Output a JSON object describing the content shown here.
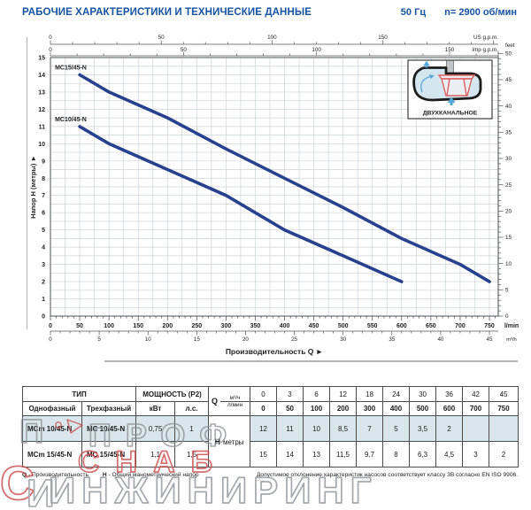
{
  "header": {
    "title": "РАБОЧИЕ ХАРАКТЕРИСТИКИ И ТЕХНИЧЕСКИЕ ДАННЫЕ",
    "frequency": "50 Гц",
    "speed": "n= 2900 об/мин"
  },
  "chart_data": {
    "type": "line",
    "xlabel": "Производительность Q  ►",
    "ylabel": "Напор H (метры)  ►",
    "x_axes": {
      "lmin": {
        "unit": "l/min",
        "ticks": [
          0,
          50,
          100,
          150,
          200,
          250,
          300,
          350,
          400,
          450,
          500,
          550,
          600,
          650,
          700,
          750
        ]
      },
      "m3h": {
        "unit": "m³/h",
        "ticks": [
          0,
          5,
          10,
          15,
          20,
          25,
          30,
          35,
          40,
          45
        ]
      },
      "us_gpm": {
        "unit": "US g.p.m.",
        "ticks": [
          0,
          50,
          100,
          150
        ]
      },
      "imp_gpm": {
        "unit": "Imp g.p.m.",
        "ticks": [
          0,
          50,
          100,
          150
        ]
      }
    },
    "y_axes": {
      "meters": {
        "ticks": [
          0,
          1,
          2,
          3,
          4,
          5,
          6,
          7,
          8,
          9,
          10,
          11,
          12,
          13,
          14,
          15
        ]
      },
      "feet": {
        "unit": "feet",
        "ticks": [
          0,
          5,
          10,
          15,
          20,
          25,
          30,
          35,
          40,
          45,
          50
        ]
      }
    },
    "series": [
      {
        "name": "MC15/45-N",
        "color": "#28418e",
        "points": [
          [
            50,
            14
          ],
          [
            100,
            13
          ],
          [
            200,
            11.5
          ],
          [
            300,
            9.7
          ],
          [
            400,
            8
          ],
          [
            500,
            6.3
          ],
          [
            600,
            4.5
          ],
          [
            700,
            3
          ],
          [
            750,
            2
          ]
        ]
      },
      {
        "name": "MC10/45-N",
        "color": "#28418e",
        "points": [
          [
            50,
            11
          ],
          [
            100,
            10
          ],
          [
            200,
            8.5
          ],
          [
            300,
            7
          ],
          [
            400,
            5
          ],
          [
            500,
            3.5
          ],
          [
            600,
            2
          ]
        ]
      }
    ],
    "inset_label": "ДВУХКАНАЛЬНОЕ"
  },
  "table": {
    "headers": {
      "tip": "ТИП",
      "power": "МОЩНОСТЬ (P2)",
      "single": "Однофазный",
      "three": "Трехфазный",
      "kw": "кВт",
      "hp": "л.с.",
      "q": "Q",
      "m3h": "м³/ч",
      "lmin": "л/мин",
      "h": "H",
      "h_unit": "метры"
    },
    "q_m3h": [
      "0",
      "3",
      "6",
      "12",
      "18",
      "24",
      "30",
      "36",
      "42",
      "45"
    ],
    "q_lmin": [
      "0",
      "50",
      "100",
      "200",
      "300",
      "400",
      "500",
      "600",
      "700",
      "750"
    ],
    "rows": [
      {
        "single": "MCm 10/45-N",
        "three": "MC 10/45-N",
        "kw": "0,75",
        "hp": "1",
        "h": [
          "12",
          "11",
          "10",
          "8,5",
          "7",
          "5",
          "3,5",
          "2",
          "",
          ""
        ]
      },
      {
        "single": "MCm 15/45-N",
        "three": "MC 15/45-N",
        "kw": "1,1",
        "hp": "1,5",
        "h": [
          "15",
          "14",
          "13",
          "11,5",
          "9,7",
          "8",
          "6,3",
          "4,5",
          "3",
          "2"
        ]
      }
    ]
  },
  "footnotes": {
    "q_label": "Q",
    "q_text": "- Производительность",
    "h_label": "H",
    "h_text": "- Общий манометрический напор",
    "tolerance": "Допустимое отклонение характеристик насосов соответствует классу 3B согласно EN ISO 9906."
  },
  "watermark": {
    "line1": "ПРОФ",
    "line2": "СНАБ",
    "line3": "ИНЖИНИРИНГ",
    "logo_letters": [
      "П",
      "С",
      "И"
    ],
    "gray": "#8e9398",
    "red": "#cc4a4a"
  },
  "colors": {
    "accent_blue": "#1553a3",
    "curve_navy": "#28418e",
    "row_highlight": "#d9e6eb"
  }
}
